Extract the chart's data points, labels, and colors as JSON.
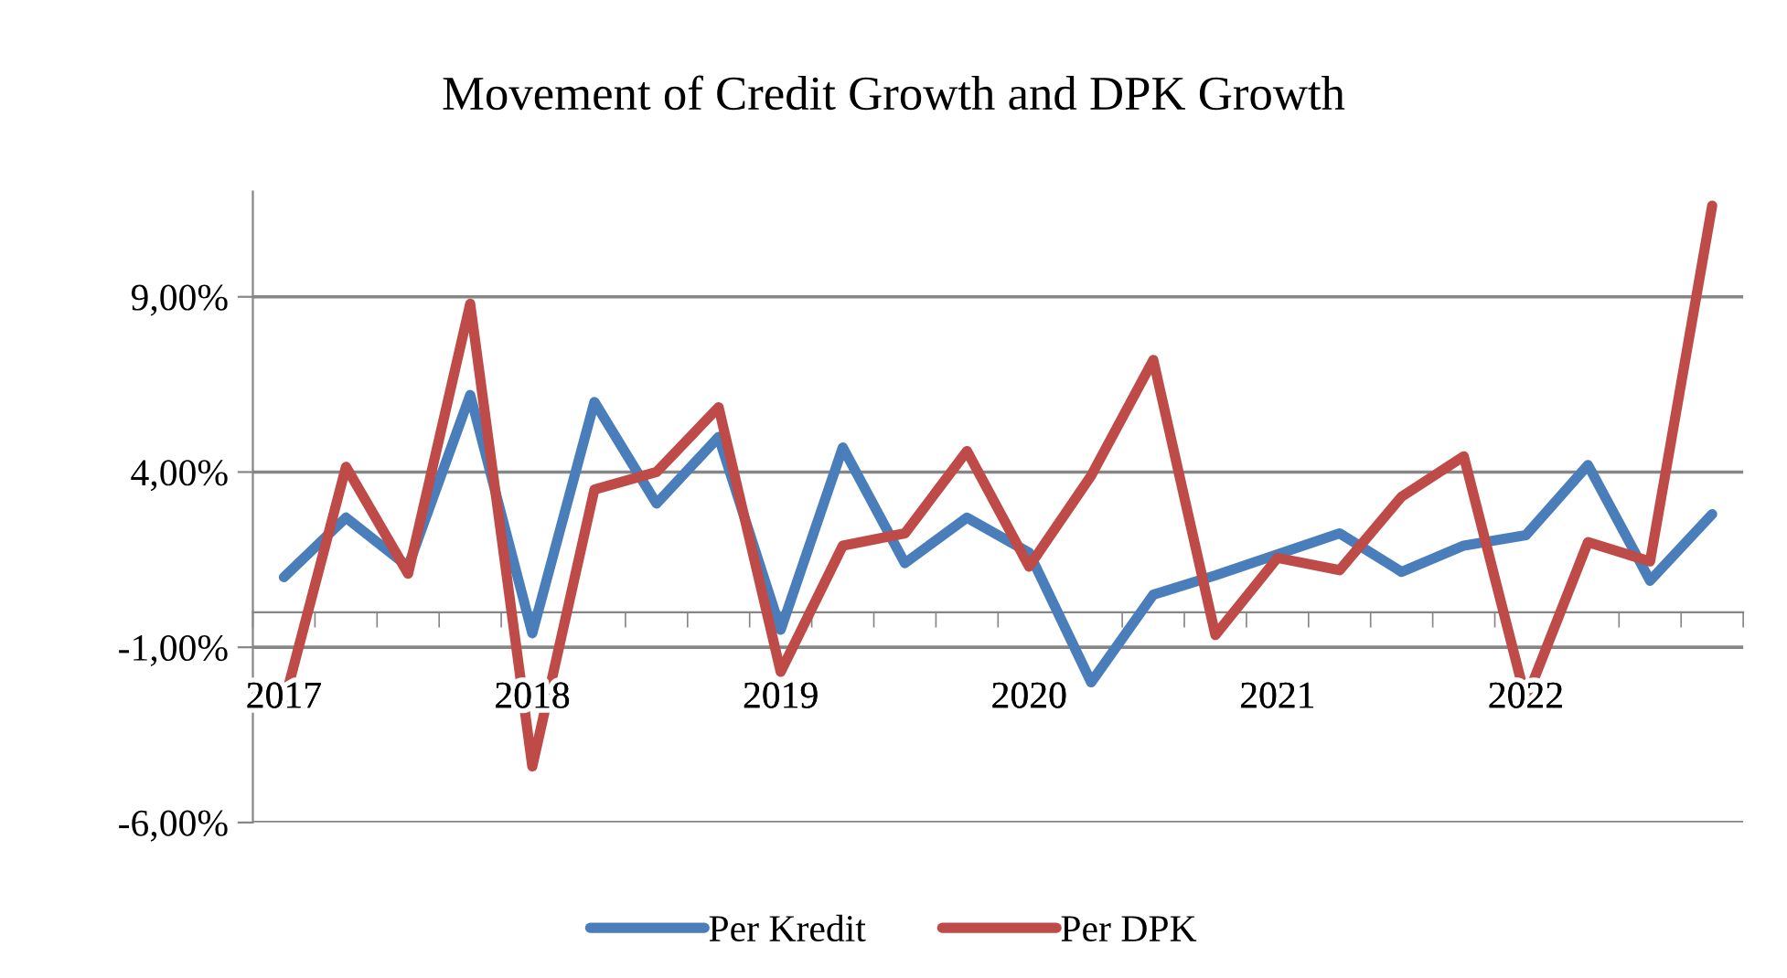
{
  "chart_data": {
    "type": "line",
    "title": "Movement of Credit Growth and DPK Growth",
    "categories": [
      "2017",
      null,
      null,
      null,
      "2018",
      null,
      null,
      null,
      "2019",
      null,
      null,
      null,
      "2020",
      null,
      null,
      null,
      "2021",
      null,
      null,
      null,
      "2022",
      null,
      null,
      null
    ],
    "series": [
      {
        "name": "Per Kredit",
        "color": "#4a7ebb",
        "values": [
          1.0,
          2.7,
          1.3,
          6.2,
          -0.6,
          6.0,
          3.1,
          5.0,
          -0.5,
          4.7,
          1.4,
          2.7,
          1.7,
          -2.0,
          0.5,
          1.05,
          1.65,
          2.25,
          1.15,
          1.9,
          2.2,
          4.2,
          0.9,
          2.8
        ]
      },
      {
        "name": "Per DPK",
        "color": "#be4b48",
        "values": [
          -2.6,
          4.15,
          1.1,
          8.8,
          -4.4,
          3.5,
          4.0,
          5.85,
          -1.7,
          1.9,
          2.25,
          4.6,
          1.3,
          3.9,
          7.2,
          -0.65,
          1.55,
          1.2,
          3.3,
          4.45,
          -2.5,
          2.0,
          1.45,
          11.6
        ]
      }
    ],
    "ylim": [
      -6,
      12
    ],
    "yticks": [
      {
        "value": -6,
        "label": "-6,00%"
      },
      {
        "value": -1,
        "label": "-1,00%"
      },
      {
        "value": 4,
        "label": "4,00%"
      },
      {
        "value": 9,
        "label": "9,00%"
      }
    ],
    "grid": "y",
    "legend": "bottom",
    "marker": "none",
    "line_style": "solid"
  }
}
